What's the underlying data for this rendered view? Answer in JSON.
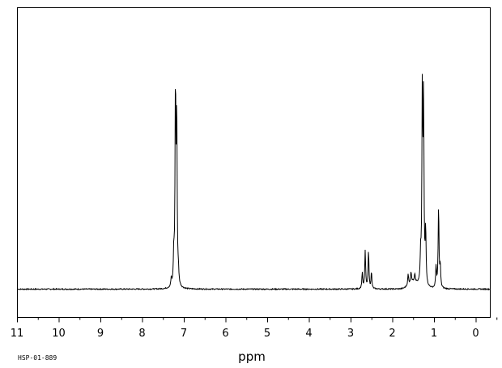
{
  "chart_data": {
    "type": "line",
    "title": "",
    "xlabel": "ppm",
    "ylabel": "",
    "xlim": [
      11,
      0
    ],
    "ylim": [
      0,
      1
    ],
    "x_reversed": true,
    "grid": false,
    "legend": "none",
    "line_color": "#000000",
    "tick_labels": [
      "11",
      "10",
      "9",
      "8",
      "7",
      "6",
      "5",
      "4",
      "3",
      "2",
      "1",
      "0"
    ],
    "tick_values": [
      11,
      10,
      9,
      8,
      7,
      6,
      5,
      4,
      3,
      2,
      1,
      0
    ],
    "minor_tick_step": 0.5,
    "peaks": [
      {
        "ppm": 7.3,
        "height": 0.03
      },
      {
        "ppm": 7.24,
        "height": 0.11
      },
      {
        "ppm": 7.2,
        "height": 0.72
      },
      {
        "ppm": 7.17,
        "height": 0.62
      },
      {
        "ppm": 7.13,
        "height": 0.04
      },
      {
        "ppm": 2.72,
        "height": 0.06
      },
      {
        "ppm": 2.65,
        "height": 0.14
      },
      {
        "ppm": 2.57,
        "height": 0.14
      },
      {
        "ppm": 2.5,
        "height": 0.06
      },
      {
        "ppm": 1.62,
        "height": 0.04
      },
      {
        "ppm": 1.55,
        "height": 0.04
      },
      {
        "ppm": 1.46,
        "height": 0.03
      },
      {
        "ppm": 1.32,
        "height": 0.1
      },
      {
        "ppm": 1.28,
        "height": 0.7
      },
      {
        "ppm": 1.25,
        "height": 0.66
      },
      {
        "ppm": 1.2,
        "height": 0.2
      },
      {
        "ppm": 0.95,
        "height": 0.08
      },
      {
        "ppm": 0.89,
        "height": 0.3
      },
      {
        "ppm": 0.85,
        "height": 0.08
      }
    ]
  },
  "footer": {
    "code": "HSP-01-889"
  }
}
